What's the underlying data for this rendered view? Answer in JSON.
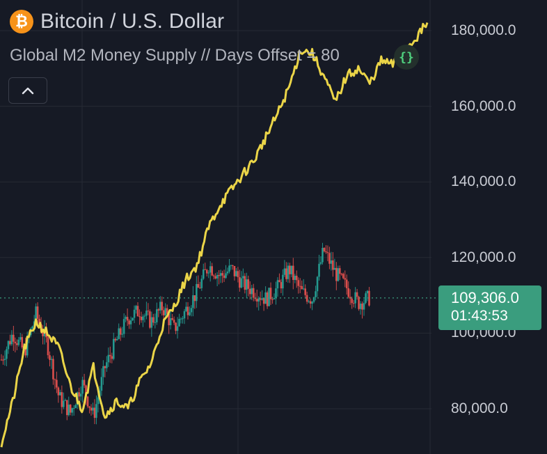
{
  "header": {
    "coin_symbol": "₿",
    "title": "Bitcoin / U.S. Dollar",
    "subtitle": "Global M2 Money Supply // Days Offset = 80"
  },
  "controls": {
    "collapse_icon": "chevron-up-icon",
    "indicator_icon": "curly-braces-icon",
    "indicator_glyph": "{}"
  },
  "price_label": {
    "price": "109,306.0",
    "countdown": "01:43:53",
    "color": "#3a9d7e"
  },
  "colors": {
    "background": "#161a25",
    "up": "#26a69a",
    "down": "#ef5350",
    "m2_line": "#f7df4a",
    "grid": "#262a35"
  },
  "chart_data": {
    "type": "line",
    "y_axis": {
      "ticks": [
        80000,
        100000,
        120000,
        140000,
        160000,
        180000
      ],
      "tick_labels": [
        "80,000.0",
        "100,000.0",
        "120,000.0",
        "140,000.0",
        "160,000.0",
        "180,000.0"
      ],
      "range": [
        68000,
        190000
      ]
    },
    "current_price": 109306,
    "grid": true,
    "series": [
      {
        "name": "Bitcoin / U.S. Dollar",
        "kind": "candlestick_closes",
        "x": [
          0,
          4,
          8,
          12,
          16,
          20,
          24,
          28,
          32,
          36,
          40,
          44,
          48,
          52,
          56,
          60,
          64,
          68,
          72,
          76,
          80,
          84,
          88,
          92,
          96,
          100,
          104,
          108,
          112,
          116,
          120,
          124,
          128
        ],
        "values": [
          93000,
          100000,
          95000,
          105000,
          97000,
          83000,
          79000,
          87000,
          78000,
          91000,
          98000,
          104000,
          106000,
          103000,
          107000,
          101000,
          106000,
          111000,
          118000,
          115000,
          117000,
          113000,
          111000,
          109000,
          112000,
          117000,
          111000,
          109000,
          122000,
          116000,
          112000,
          108000,
          109306
        ]
      },
      {
        "name": "Global M2 Money Supply // Days Offset = 80",
        "kind": "line",
        "x": [
          0,
          4,
          8,
          12,
          16,
          20,
          24,
          28,
          32,
          36,
          40,
          44,
          48,
          52,
          56,
          60,
          64,
          68,
          72,
          76,
          80,
          84,
          88,
          92,
          96,
          100,
          104,
          108,
          112,
          116,
          120,
          124,
          128,
          132,
          136,
          140,
          144,
          148
        ],
        "values": [
          71000,
          82000,
          96000,
          103000,
          100000,
          96000,
          86000,
          80000,
          91000,
          78000,
          82000,
          80000,
          87000,
          92000,
          102000,
          107000,
          114000,
          118000,
          128000,
          134000,
          138000,
          142000,
          146000,
          152000,
          158000,
          165000,
          175000,
          174000,
          168000,
          161000,
          168000,
          170000,
          166000,
          172000,
          171000,
          175000,
          178000,
          182000
        ]
      }
    ]
  }
}
